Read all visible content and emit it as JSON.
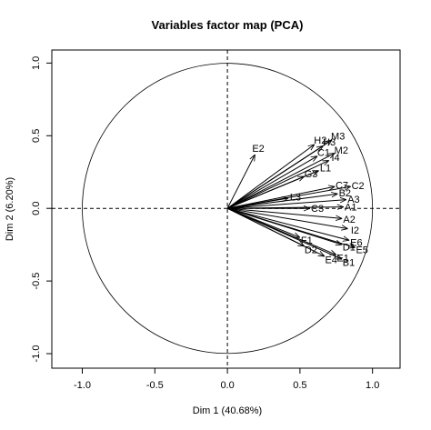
{
  "chart_data": {
    "type": "arrow",
    "title": "Variables factor map (PCA)",
    "xlabel": "Dim 1 (40.68%)",
    "ylabel": "Dim 2 (6.20%)",
    "xlim": [
      -1.21,
      1.19
    ],
    "ylim": [
      -1.1,
      1.09
    ],
    "xticks": [
      {
        "value": -1,
        "label": "-1.0"
      },
      -0.5,
      {
        "value": 0,
        "label": "0.0"
      },
      0.5,
      {
        "value": 1,
        "label": "1.0"
      }
    ],
    "yticks": [
      {
        "value": -1,
        "label": "-1.0"
      },
      -0.5,
      {
        "value": 0,
        "label": "0.0"
      },
      0.5,
      {
        "value": 1,
        "label": "1.0"
      }
    ],
    "color": "#000000",
    "labels": [
      "E2",
      "M3",
      "H2",
      "H3",
      "M2",
      "I4",
      "C1",
      "L1",
      "G3",
      "C2",
      "C7",
      "B2",
      "A3",
      "L3",
      "A1",
      "C3",
      "A2",
      "I2",
      "E6",
      "D1",
      "E5",
      "D2",
      "E1",
      "B1",
      "E4",
      "F1"
    ],
    "x": [
      0.19,
      0.72,
      0.6,
      0.66,
      0.74,
      0.7,
      0.62,
      0.63,
      0.53,
      0.85,
      0.74,
      0.76,
      0.82,
      0.42,
      0.8,
      0.57,
      0.79,
      0.83,
      0.84,
      0.79,
      0.88,
      0.53,
      0.75,
      0.79,
      0.67,
      0.5
    ],
    "y": [
      0.37,
      0.47,
      0.44,
      0.43,
      0.38,
      0.33,
      0.36,
      0.26,
      0.22,
      0.15,
      0.15,
      0.1,
      0.06,
      0.07,
      0.01,
      0.0,
      -0.07,
      -0.14,
      -0.22,
      -0.25,
      -0.27,
      -0.26,
      -0.32,
      -0.35,
      -0.33,
      -0.2
    ]
  }
}
